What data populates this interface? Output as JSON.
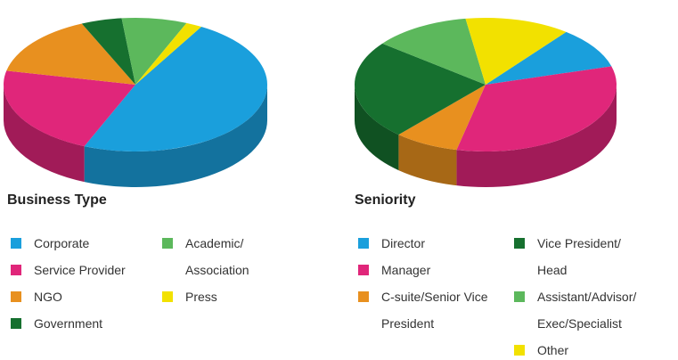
{
  "chart_data": [
    {
      "type": "pie",
      "title": "Business Type",
      "categories": [
        "Corporate",
        "Service Provider",
        "NGO",
        "Government",
        "Academic/ Association",
        "Press"
      ],
      "values": [
        48,
        22,
        15,
        5,
        8,
        2
      ],
      "colors": [
        "#1a9fdc",
        "#e0267a",
        "#e8901f",
        "#16702f",
        "#5cb85c",
        "#f2e100"
      ]
    },
    {
      "type": "pie",
      "title": "Seniority",
      "categories": [
        "Director",
        "Manager",
        "C-suite/Senior Vice President",
        "Vice President/ Head",
        "Assistant/Advisor/ Exec/Specialist",
        "Other"
      ],
      "values": [
        10,
        33,
        8,
        24,
        12,
        13
      ],
      "colors": [
        "#1a9fdc",
        "#e0267a",
        "#e8901f",
        "#16702f",
        "#5cb85c",
        "#f2e100"
      ]
    }
  ]
}
